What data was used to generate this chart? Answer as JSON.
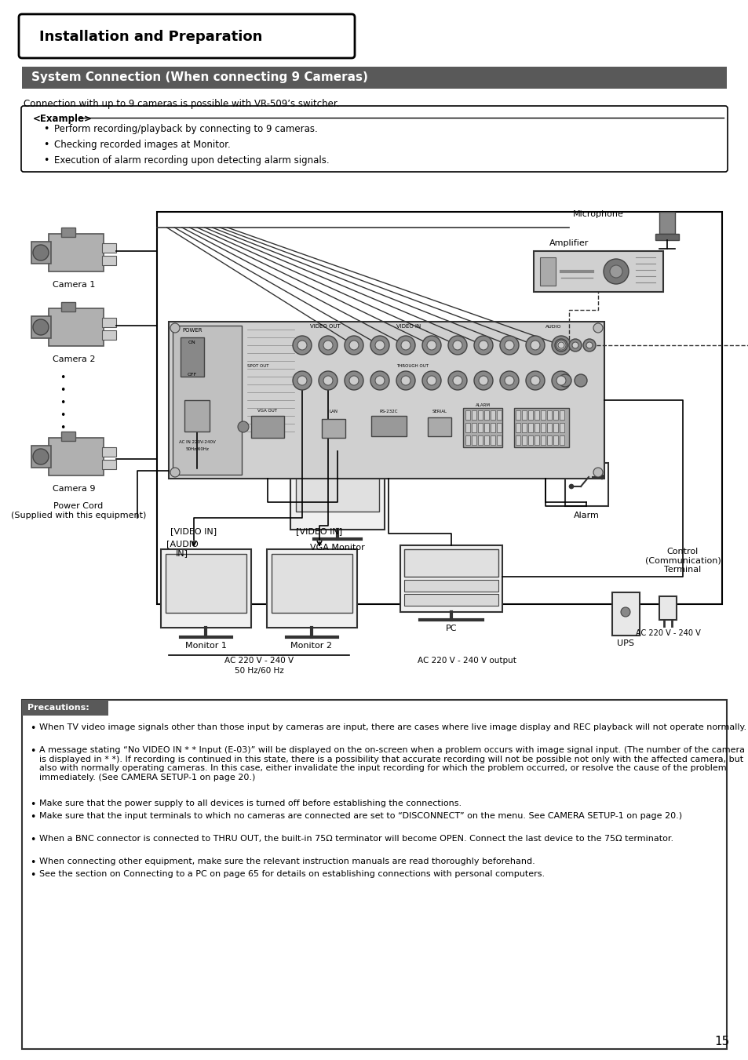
{
  "bg_color": "#ffffff",
  "title_box_text": "Installation and Preparation",
  "section_header_text": "System Connection (When connecting 9 Cameras)",
  "section_header_bg": "#595959",
  "section_header_fg": "#ffffff",
  "intro_text": "Connection with up to 9 cameras is possible with VR-509’s switcher.",
  "example_label": "<Example>",
  "example_bullets": [
    "Perform recording/playback by connecting to 9 cameras.",
    "Checking recorded images at Monitor.",
    "Execution of alarm recording upon detecting alarm signals."
  ],
  "precautions_header": "Precautions:",
  "precautions_header_bg": "#595959",
  "precautions_header_fg": "#ffffff",
  "precautions_bullets": [
    "When TV video image signals other than those input by cameras are input, there are cases where live image display and REC playback will not operate normally.",
    "A message stating “No VIDEO IN * * Input (E-03)” will be displayed on the on-screen when a problem occurs with image signal input. (The number of the camera is displayed in * *). If recording is continued in this state, there is a possibility that accurate recording will not be possible not only with the affected camera, but also with normally operating cameras. In this case, either invalidate the input recording for which the problem occurred, or resolve the cause of the problem immediately. (See CAMERA SETUP-1 on page 20.)",
    "Make sure that the power supply to all devices is turned off before establishing the connections.",
    "Make sure that the input terminals to which no cameras are connected are set to “DISCONNECT” on the menu. See CAMERA SETUP-1 on page 20.)",
    "When a BNC connector is connected to THRU OUT, the built-in 75Ω terminator will become OPEN. Connect the last device to the 75Ω terminator.",
    "When connecting other equipment, make sure the relevant instruction manuals are read thoroughly beforehand.",
    "See the section on Connecting to a PC on page 65 for details on establishing connections with personal computers."
  ],
  "page_number": "15"
}
